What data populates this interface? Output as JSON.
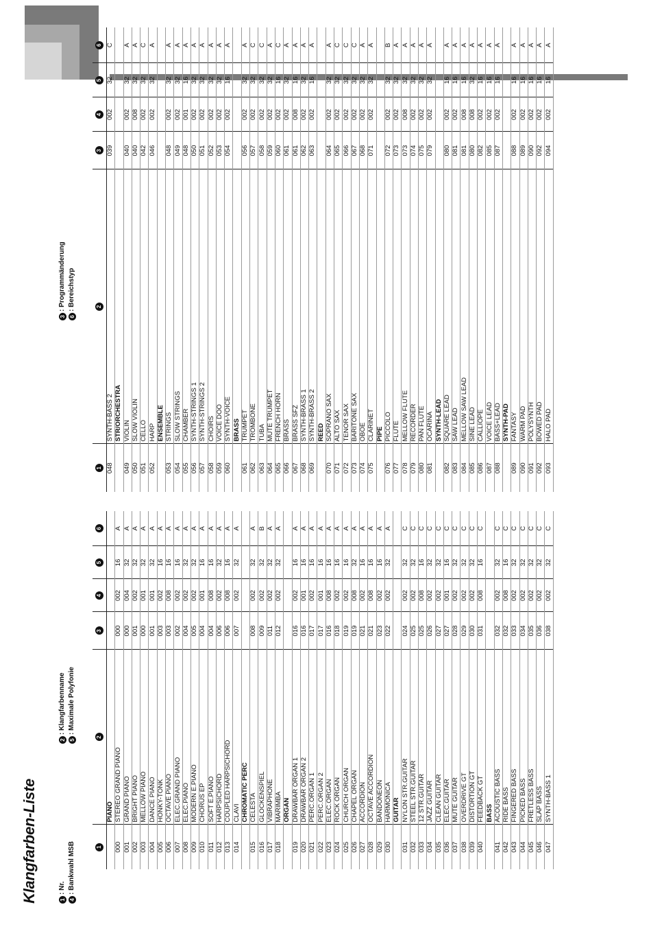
{
  "title": "Klangfarben-Liste",
  "legend": [
    {
      "num": "1",
      "text": "Nr."
    },
    {
      "num": "2",
      "text": "Klangfarbenname"
    },
    {
      "num": "3",
      "text": "Programmänderung"
    },
    {
      "num": "4",
      "text": "Bankwahl MSB"
    },
    {
      "num": "5",
      "text": "Maximale Polyfonie"
    },
    {
      "num": "6",
      "text": "Bereichstyp"
    }
  ],
  "column_headers": [
    "1",
    "2",
    "3",
    "4",
    "5",
    "6"
  ],
  "colors": {
    "dark_gray": "#7a7a7a",
    "light_gray": "#d6d6d6",
    "mid_gray": "#a8a8a8",
    "watermark": "#9fc4e8"
  },
  "table_left": [
    [
      "",
      "PIANO",
      "",
      "",
      "",
      ""
    ],
    [
      "000",
      "STEREO GRAND PIANO",
      "000",
      "002",
      "16",
      "A"
    ],
    [
      "001",
      "GRAND PIANO",
      "000",
      "004",
      "32",
      "A"
    ],
    [
      "002",
      "BRIGHT PIANO",
      "001",
      "002",
      "32",
      "A"
    ],
    [
      "003",
      "MELLOW PIANO",
      "000",
      "001",
      "32",
      "A"
    ],
    [
      "004",
      "DANCE PIANO",
      "001",
      "001",
      "32",
      "A"
    ],
    [
      "005",
      "HONKY-TONK",
      "003",
      "002",
      "16",
      "A"
    ],
    [
      "006",
      "OCTAVE PIANO",
      "003",
      "008",
      "16",
      "A"
    ],
    [
      "007",
      "ELEC.GRAND PIANO",
      "002",
      "002",
      "16",
      "A"
    ],
    [
      "008",
      "ELEC.PIANO",
      "004",
      "002",
      "32",
      "A"
    ],
    [
      "009",
      "MODERN E.PIANO",
      "005",
      "002",
      "32",
      "A"
    ],
    [
      "010",
      "CHORUS EP",
      "004",
      "001",
      "16",
      "A"
    ],
    [
      "011",
      "SOFT E.PIANO",
      "004",
      "008",
      "16",
      "A"
    ],
    [
      "012",
      "HARPSICHORD",
      "006",
      "002",
      "32",
      "A"
    ],
    [
      "013",
      "COUPLED HARPSICHORD",
      "006",
      "008",
      "16",
      "A"
    ],
    [
      "014",
      "CLAVI",
      "007",
      "002",
      "32",
      "A"
    ],
    [
      "",
      "CHROMATIC PERC",
      "",
      "",
      "",
      ""
    ],
    [
      "015",
      "CELESTA",
      "008",
      "002",
      "32",
      "A"
    ],
    [
      "016",
      "GLOCKENSPIEL",
      "009",
      "002",
      "32",
      "B"
    ],
    [
      "017",
      "VIBRAPHONE",
      "011",
      "002",
      "32",
      "A"
    ],
    [
      "018",
      "MARIMBA",
      "012",
      "002",
      "32",
      "A"
    ],
    [
      "",
      "ORGAN",
      "",
      "",
      "",
      ""
    ],
    [
      "019",
      "DRAWBAR ORGAN 1",
      "016",
      "002",
      "16",
      "A"
    ],
    [
      "020",
      "DRAWBAR ORGAN 2",
      "016",
      "001",
      "16",
      "A"
    ],
    [
      "021",
      "PERC.ORGAN 1",
      "017",
      "002",
      "16",
      "A"
    ],
    [
      "022",
      "PERC.ORGAN 2",
      "017",
      "001",
      "16",
      "A"
    ],
    [
      "023",
      "ELEC.ORGAN",
      "016",
      "008",
      "16",
      "A"
    ],
    [
      "024",
      "ROCK ORGAN",
      "018",
      "002",
      "16",
      "A"
    ],
    [
      "025",
      "CHURCH ORGAN",
      "019",
      "002",
      "16",
      "A"
    ],
    [
      "026",
      "CHAPEL ORGAN",
      "019",
      "008",
      "32",
      "A"
    ],
    [
      "027",
      "ACCORDION",
      "021",
      "002",
      "16",
      "A"
    ],
    [
      "028",
      "OCTAVE ACCORDION",
      "021",
      "008",
      "16",
      "A"
    ],
    [
      "029",
      "BANDONEON",
      "023",
      "002",
      "16",
      "A"
    ],
    [
      "030",
      "HARMONICA",
      "022",
      "002",
      "32",
      "A"
    ],
    [
      "",
      "GUITAR",
      "",
      "",
      "",
      ""
    ],
    [
      "031",
      "NYLON STR.GUITAR",
      "024",
      "002",
      "32",
      "C"
    ],
    [
      "032",
      "STEEL STR.GUITAR",
      "025",
      "002",
      "32",
      "C"
    ],
    [
      "033",
      "12 STR.GUITAR",
      "025",
      "008",
      "16",
      "C"
    ],
    [
      "034",
      "JAZZ GUITAR",
      "026",
      "002",
      "32",
      "C"
    ],
    [
      "035",
      "CLEAN GUITAR",
      "027",
      "002",
      "32",
      "C"
    ],
    [
      "036",
      "ELEC.GUITAR",
      "027",
      "001",
      "16",
      "C"
    ],
    [
      "037",
      "MUTE GUITAR",
      "028",
      "002",
      "32",
      "C"
    ],
    [
      "038",
      "OVERDRIVE GT",
      "029",
      "002",
      "32",
      "C"
    ],
    [
      "039",
      "DISTORTION GT",
      "030",
      "002",
      "32",
      "C"
    ],
    [
      "040",
      "FEEDBACK GT",
      "031",
      "008",
      "16",
      "C"
    ],
    [
      "",
      "BASS",
      "",
      "",
      "",
      ""
    ],
    [
      "041",
      "ACOUSTIC BASS",
      "032",
      "002",
      "32",
      "C"
    ],
    [
      "042",
      "RIDE BASS",
      "032",
      "008",
      "16",
      "C"
    ],
    [
      "043",
      "FINGERED BASS",
      "033",
      "002",
      "32",
      "C"
    ],
    [
      "044",
      "PICKED BASS",
      "034",
      "002",
      "32",
      "C"
    ],
    [
      "045",
      "FRETLESS BASS",
      "035",
      "002",
      "32",
      "C"
    ],
    [
      "046",
      "SLAP BASS",
      "036",
      "002",
      "32",
      "C"
    ],
    [
      "047",
      "SYNTH-BASS 1",
      "038",
      "002",
      "32",
      "C"
    ]
  ],
  "table_right": [
    [
      "048",
      "SYNTH-BASS 2",
      "039",
      "002",
      "32",
      "C"
    ],
    [
      "",
      "STR/ORCHESTRA",
      "",
      "",
      "",
      ""
    ],
    [
      "049",
      "VIOLIN",
      "040",
      "002",
      "32",
      "A"
    ],
    [
      "050",
      "SLOW VIOLIN",
      "040",
      "008",
      "32",
      "A"
    ],
    [
      "051",
      "CELLO",
      "042",
      "002",
      "32",
      "C"
    ],
    [
      "052",
      "HARP",
      "046",
      "002",
      "32",
      "A"
    ],
    [
      "",
      "ENSEMBLE",
      "",
      "",
      "",
      ""
    ],
    [
      "053",
      "STRINGS",
      "048",
      "002",
      "32",
      "A"
    ],
    [
      "054",
      "SLOW STRINGS",
      "049",
      "002",
      "32",
      "A"
    ],
    [
      "055",
      "CHAMBER",
      "048",
      "001",
      "16",
      "A"
    ],
    [
      "056",
      "SYNTH-STRINGS 1",
      "050",
      "002",
      "32",
      "A"
    ],
    [
      "057",
      "SYNTH-STRINGS 2",
      "051",
      "002",
      "32",
      "A"
    ],
    [
      "058",
      "CHOIRS",
      "052",
      "002",
      "32",
      "A"
    ],
    [
      "059",
      "VOICE DOO",
      "053",
      "002",
      "32",
      "A"
    ],
    [
      "060",
      "SYNTH-VOICE",
      "054",
      "002",
      "16",
      "A"
    ],
    [
      "",
      "BRASS",
      "",
      "",
      "",
      ""
    ],
    [
      "061",
      "TRUMPET",
      "056",
      "002",
      "32",
      "A"
    ],
    [
      "062",
      "TROMBONE",
      "057",
      "002",
      "32",
      "C"
    ],
    [
      "063",
      "TUBA",
      "058",
      "002",
      "32",
      "C"
    ],
    [
      "064",
      "MUTE TRUMPET",
      "059",
      "002",
      "32",
      "A"
    ],
    [
      "065",
      "FRENCH HORN",
      "060",
      "002",
      "16",
      "C"
    ],
    [
      "066",
      "BRASS",
      "061",
      "002",
      "32",
      "A"
    ],
    [
      "067",
      "BRASS SFZ",
      "061",
      "008",
      "16",
      "A"
    ],
    [
      "068",
      "SYNTH-BRASS 1",
      "062",
      "002",
      "32",
      "A"
    ],
    [
      "069",
      "SYNTH-BRASS 2",
      "063",
      "002",
      "16",
      "A"
    ],
    [
      "",
      "REED",
      "",
      "",
      "",
      ""
    ],
    [
      "070",
      "SOPRANO SAX",
      "064",
      "002",
      "32",
      "A"
    ],
    [
      "071",
      "ALTO SAX",
      "065",
      "002",
      "32",
      "C"
    ],
    [
      "072",
      "TENOR SAX",
      "066",
      "002",
      "32",
      "C"
    ],
    [
      "073",
      "BARITONE SAX",
      "067",
      "002",
      "32",
      "C"
    ],
    [
      "074",
      "OBOE",
      "068",
      "002",
      "32",
      "A"
    ],
    [
      "075",
      "CLARINET",
      "071",
      "002",
      "32",
      "A"
    ],
    [
      "",
      "PIPE",
      "",
      "",
      "",
      ""
    ],
    [
      "076",
      "PICCOLO",
      "072",
      "002",
      "32",
      "B"
    ],
    [
      "077",
      "FLUTE",
      "073",
      "002",
      "32",
      "A"
    ],
    [
      "078",
      "MELLOW FLUTE",
      "073",
      "008",
      "32",
      "A"
    ],
    [
      "079",
      "RECORDER",
      "074",
      "002",
      "32",
      "A"
    ],
    [
      "080",
      "PAN FLUTE",
      "075",
      "002",
      "32",
      "A"
    ],
    [
      "081",
      "OCARINA",
      "079",
      "002",
      "32",
      "A"
    ],
    [
      "",
      "SYNTH-LEAD",
      "",
      "",
      "",
      ""
    ],
    [
      "082",
      "SQUARE LEAD",
      "080",
      "002",
      "16",
      "A"
    ],
    [
      "083",
      "SAW LEAD",
      "081",
      "002",
      "16",
      "A"
    ],
    [
      "084",
      "MELLOW SAW LEAD",
      "081",
      "008",
      "16",
      "A"
    ],
    [
      "085",
      "SINE LEAD",
      "080",
      "008",
      "32",
      "A"
    ],
    [
      "086",
      "CALLIOPE",
      "082",
      "002",
      "16",
      "A"
    ],
    [
      "087",
      "VOICE LEAD",
      "085",
      "002",
      "16",
      "A"
    ],
    [
      "088",
      "BASS+LEAD",
      "087",
      "002",
      "16",
      "A"
    ],
    [
      "",
      "SYNTH-PAD",
      "",
      "",
      "",
      ""
    ],
    [
      "089",
      "FANTASY",
      "088",
      "002",
      "16",
      "A"
    ],
    [
      "090",
      "WARM PAD",
      "089",
      "002",
      "16",
      "A"
    ],
    [
      "091",
      "POLYSYNTH",
      "090",
      "002",
      "16",
      "A"
    ],
    [
      "092",
      "BOWED PAD",
      "092",
      "002",
      "16",
      "A"
    ],
    [
      "093",
      "HALO PAD",
      "094",
      "002",
      "16",
      "A"
    ]
  ]
}
